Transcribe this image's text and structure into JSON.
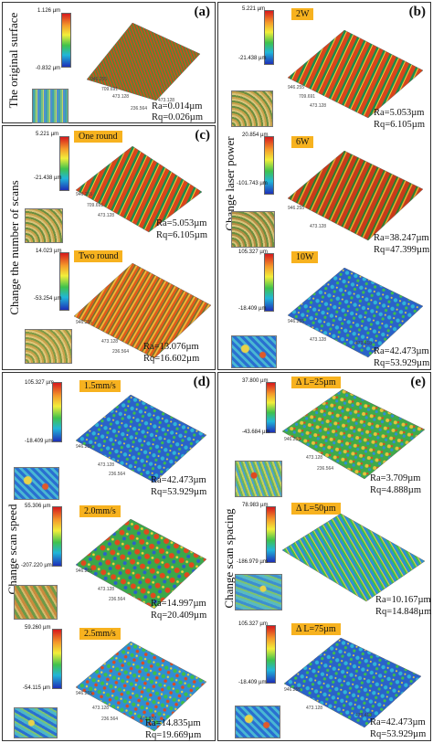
{
  "figure": {
    "panels": [
      {
        "label": "(a)",
        "title": "The original surface",
        "maps": [
          {
            "scale_max": "1.126 µm",
            "scale_min": "-0.832 µm",
            "tag": "",
            "ra": "Ra=0.014µm",
            "rq": "Rq=0.026µm",
            "ticks": [
              "946.255",
              "709.691",
              "473.128",
              "236.564",
              "0",
              "473.128"
            ]
          }
        ]
      },
      {
        "label": "(b)",
        "title": "Change laser power",
        "maps": [
          {
            "scale_max": "5.221 µm",
            "scale_min": "-21.438 µm",
            "tag": "2W",
            "ra": "Ra=5.053µm",
            "rq": "Rq=6.105µm",
            "ticks": [
              "946.255",
              "709.691",
              "473.128",
              "236.564",
              "0"
            ]
          },
          {
            "scale_max": "20.854 µm",
            "scale_min": "-101.743 µm",
            "tag": "6W",
            "ra": "Ra=38.247µm",
            "rq": "Rq=47.399µm",
            "ticks": [
              "946.255",
              "709.691",
              "473.128",
              "236.564",
              "0"
            ]
          },
          {
            "scale_max": "105.327 µm",
            "scale_min": "-18.409 µm",
            "tag": "10W",
            "ra": "Ra=42.473µm",
            "rq": "Rq=53.929µm",
            "ticks": [
              "946.255",
              "709.691",
              "473.128",
              "236.564",
              "0",
              "473.418"
            ]
          }
        ]
      },
      {
        "label": "(c)",
        "title": "Change the number of scans",
        "maps": [
          {
            "scale_max": "5.221 µm",
            "scale_min": "-21.438 µm",
            "tag": "One round",
            "ra": "Ra=5.053µm",
            "rq": "Rq=6.105µm",
            "ticks": [
              "946.255",
              "709.691",
              "473.128",
              "236.564",
              "0"
            ]
          },
          {
            "scale_max": "14.023 µm",
            "scale_min": "-53.254 µm",
            "tag": "Two round",
            "ra": "Ra=13.076µm",
            "rq": "Rq=16.602µm",
            "ticks": [
              "946.255",
              "709.691",
              "473.128",
              "236.564",
              "0",
              "473.418"
            ]
          }
        ]
      },
      {
        "label": "(d)",
        "title": "Change scan speed",
        "maps": [
          {
            "scale_max": "105.327 µm",
            "scale_min": "-18.409 µm",
            "tag": "1.5mm/s",
            "ra": "Ra=42.473µm",
            "rq": "Rq=53.929µm",
            "ticks": [
              "946.255",
              "709.691",
              "473.128",
              "236.564",
              "0",
              "473.418"
            ]
          },
          {
            "scale_max": "55.306 µm",
            "scale_min": "-207.220 µm",
            "tag": "2.0mm/s",
            "ra": "Ra=14.997µm",
            "rq": "Rq=20.409µm",
            "ticks": [
              "946.255",
              "709.691",
              "473.128",
              "236.564",
              "0",
              "473.418"
            ]
          },
          {
            "scale_max": "59.260 µm",
            "scale_min": "-54.115 µm",
            "tag": "2.5mm/s",
            "ra": "Ra=14.835µm",
            "rq": "Rq=19.669µm",
            "ticks": [
              "946.255",
              "709.691",
              "473.128",
              "236.564",
              "0",
              "473.837"
            ]
          }
        ]
      },
      {
        "label": "(e)",
        "title": "Change scan spacing",
        "maps": [
          {
            "scale_max": "37.800 µm",
            "scale_min": "-43.684 µm",
            "tag": "Δ L=25µm",
            "ra": "Ra=3.709µm",
            "rq": "Rq=4.888µm",
            "ticks": [
              "946.255",
              "709.691",
              "473.128",
              "236.564",
              "0",
              "473.418"
            ]
          },
          {
            "scale_max": "78.983 µm",
            "scale_min": "-186.979 µm",
            "tag": "Δ L=50µm",
            "ra": "Ra=10.167µm",
            "rq": "Rq=14.848µm",
            "ticks": [
              "946.255",
              "709.691",
              "473.128",
              "236.564",
              "0"
            ]
          },
          {
            "scale_max": "105.327 µm",
            "scale_min": "-18.409 µm",
            "tag": "Δ L=75µm",
            "ra": "Ra=42.473µm",
            "rq": "Rq=53.929µm",
            "ticks": [
              "946.255",
              "709.691",
              "473.128",
              "236.564",
              "0",
              "473.418"
            ]
          }
        ]
      }
    ]
  }
}
